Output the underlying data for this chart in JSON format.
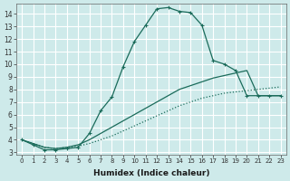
{
  "xlabel": "Humidex (Indice chaleur)",
  "background_color": "#ceeaea",
  "grid_color": "#ffffff",
  "line_color": "#1a6b5a",
  "xlim": [
    -0.5,
    23.5
  ],
  "ylim": [
    2.8,
    14.8
  ],
  "xticks": [
    0,
    1,
    2,
    3,
    4,
    5,
    6,
    7,
    8,
    9,
    10,
    11,
    12,
    13,
    14,
    15,
    16,
    17,
    18,
    19,
    20,
    21,
    22,
    23
  ],
  "yticks": [
    3,
    4,
    5,
    6,
    7,
    8,
    9,
    10,
    11,
    12,
    13,
    14
  ],
  "series": [
    {
      "x": [
        0,
        1,
        2,
        3,
        4,
        5,
        6,
        7,
        8,
        9,
        10,
        11,
        12,
        13,
        14,
        15,
        16,
        17,
        18,
        19,
        20,
        21,
        22,
        23
      ],
      "y": [
        4.0,
        3.7,
        3.4,
        3.3,
        3.4,
        3.5,
        3.7,
        4.0,
        4.3,
        4.7,
        5.1,
        5.5,
        5.9,
        6.3,
        6.7,
        7.0,
        7.3,
        7.5,
        7.7,
        7.8,
        7.9,
        8.0,
        8.1,
        8.2
      ],
      "linestyle": ":",
      "marker": null,
      "linewidth": 0.9
    },
    {
      "x": [
        0,
        1,
        2,
        3,
        4,
        5,
        6,
        7,
        8,
        9,
        10,
        11,
        12,
        13,
        14,
        15,
        16,
        17,
        18,
        19,
        20,
        21,
        22,
        23
      ],
      "y": [
        4.0,
        3.6,
        3.2,
        3.2,
        3.3,
        3.4,
        4.5,
        6.3,
        7.4,
        9.8,
        11.8,
        13.1,
        14.4,
        14.5,
        14.2,
        14.1,
        13.1,
        10.3,
        10.0,
        9.5,
        7.5,
        7.5,
        7.5,
        7.5
      ],
      "linestyle": "-",
      "marker": "+",
      "linewidth": 0.9
    },
    {
      "x": [
        0,
        1,
        2,
        3,
        4,
        5,
        6,
        7,
        8,
        9,
        10,
        11,
        12,
        13,
        14,
        15,
        16,
        17,
        18,
        19,
        20,
        21,
        22,
        23
      ],
      "y": [
        4.0,
        3.7,
        3.4,
        3.3,
        3.4,
        3.6,
        4.0,
        4.5,
        5.0,
        5.5,
        6.0,
        6.5,
        7.0,
        7.5,
        8.0,
        8.3,
        8.6,
        8.9,
        9.1,
        9.3,
        9.5,
        7.5,
        7.5,
        7.5
      ],
      "linestyle": "-",
      "marker": null,
      "linewidth": 0.9
    }
  ]
}
